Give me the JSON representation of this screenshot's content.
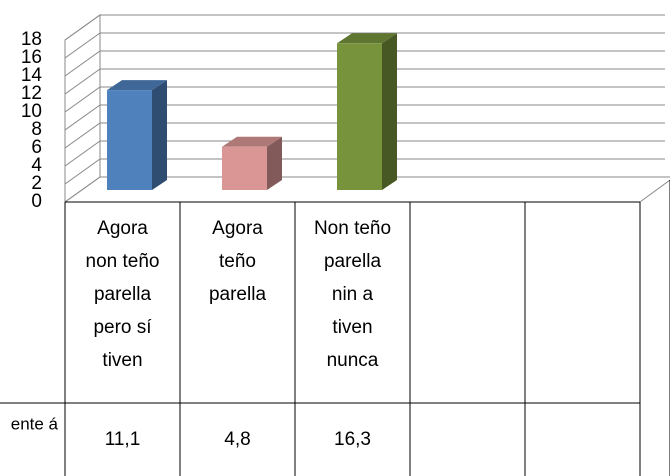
{
  "chart_data": {
    "type": "bar3d",
    "categories": [
      "Agora non teño parella pero sí tiven",
      "Agora teño parella",
      "Non teño parella nin a tiven nunca",
      null,
      null
    ],
    "series": [
      {
        "name": "ente á",
        "values": [
          11.1,
          4.8,
          16.3,
          null,
          null
        ],
        "value_labels": [
          "11,1",
          "4,8",
          "16,3",
          null,
          null
        ]
      }
    ],
    "colors": [
      "#4f81bd",
      "#d99694",
      "#77933c",
      null,
      null
    ],
    "ylim": [
      0,
      18
    ],
    "yticks": [
      0,
      2,
      4,
      6,
      8,
      10,
      12,
      14,
      16,
      18
    ],
    "grid": true
  }
}
